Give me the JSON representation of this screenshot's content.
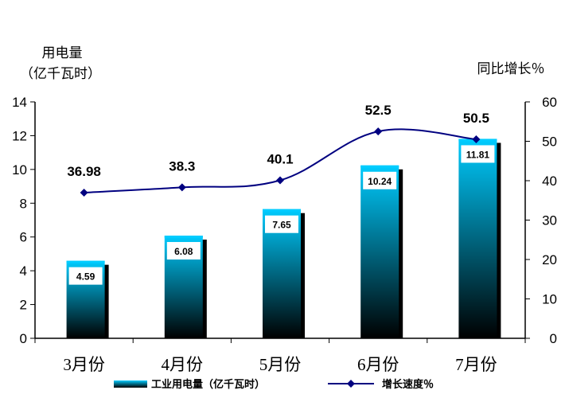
{
  "chart_data": {
    "type": "bar",
    "categories": [
      "3月份",
      "4月份",
      "5月份",
      "6月份",
      "7月份"
    ],
    "series": [
      {
        "name": "工业用电量（亿千瓦时）",
        "type": "bar",
        "axis": "left",
        "values": [
          4.59,
          6.08,
          7.65,
          10.24,
          11.81
        ],
        "data_labels": [
          "4.59",
          "6.08",
          "7.65",
          "10.24",
          "11.81"
        ]
      },
      {
        "name": "增长速度％",
        "type": "line",
        "axis": "right",
        "values": [
          36.98,
          38.3,
          40.1,
          52.5,
          50.5
        ],
        "data_labels": [
          "36.98",
          "38.3",
          "40.1",
          "52.5",
          "50.5"
        ]
      }
    ],
    "ylabel_left_line1": "用电量",
    "ylabel_left_line2": "（亿千瓦时）",
    "ylabel_right": "同比增长％",
    "ylim_left": [
      0,
      14
    ],
    "ylim_right": [
      0,
      60
    ],
    "yticks_left": [
      "0",
      "2",
      "4",
      "6",
      "8",
      "10",
      "12",
      "14"
    ],
    "yticks_right": [
      "0",
      "10",
      "20",
      "30",
      "40",
      "50",
      "60"
    ],
    "grid": false,
    "legend_position": "bottom",
    "colors": {
      "bar_top": "#00CCFF",
      "bar_bottom": "#000000",
      "line": "#000080"
    }
  }
}
